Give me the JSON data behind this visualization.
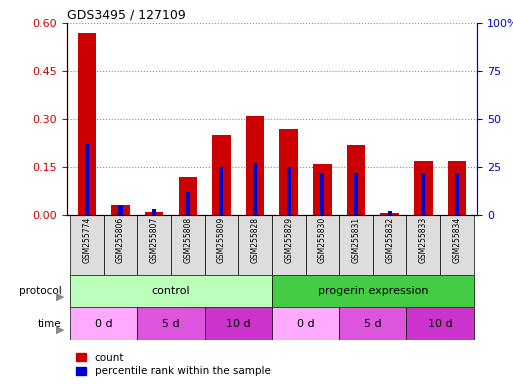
{
  "title": "GDS3495 / 127109",
  "samples": [
    "GSM255774",
    "GSM255806",
    "GSM255807",
    "GSM255808",
    "GSM255809",
    "GSM255828",
    "GSM255829",
    "GSM255830",
    "GSM255831",
    "GSM255832",
    "GSM255833",
    "GSM255834"
  ],
  "red_values": [
    0.57,
    0.03,
    0.01,
    0.12,
    0.25,
    0.31,
    0.27,
    0.16,
    0.22,
    0.005,
    0.17,
    0.17
  ],
  "blue_pct": [
    37,
    5,
    3,
    12,
    25,
    27,
    25,
    22,
    22,
    2,
    22,
    22
  ],
  "ylim_left": [
    0,
    0.6
  ],
  "ylim_right": [
    0,
    100
  ],
  "yticks_left": [
    0,
    0.15,
    0.3,
    0.45,
    0.6
  ],
  "yticks_right": [
    0,
    25,
    50,
    75,
    100
  ],
  "left_color": "#cc0000",
  "right_color": "#0000cc",
  "protocol_groups": [
    {
      "label": "control",
      "start": 0,
      "end": 6,
      "color": "#bbffbb"
    },
    {
      "label": "progerin expression",
      "start": 6,
      "end": 12,
      "color": "#44cc44"
    }
  ],
  "time_groups": [
    {
      "label": "0 d",
      "start": 0,
      "end": 2,
      "color": "#ffaaff"
    },
    {
      "label": "5 d",
      "start": 2,
      "end": 4,
      "color": "#dd55dd"
    },
    {
      "label": "10 d",
      "start": 4,
      "end": 6,
      "color": "#cc33cc"
    },
    {
      "label": "0 d",
      "start": 6,
      "end": 8,
      "color": "#ffaaff"
    },
    {
      "label": "5 d",
      "start": 8,
      "end": 10,
      "color": "#dd55dd"
    },
    {
      "label": "10 d",
      "start": 10,
      "end": 12,
      "color": "#cc33cc"
    }
  ],
  "bar_width": 0.55,
  "blue_bar_width": 0.12,
  "background_color": "#ffffff",
  "grid_color": "#888888",
  "sample_bg_color": "#dddddd",
  "label_color": "#888888"
}
